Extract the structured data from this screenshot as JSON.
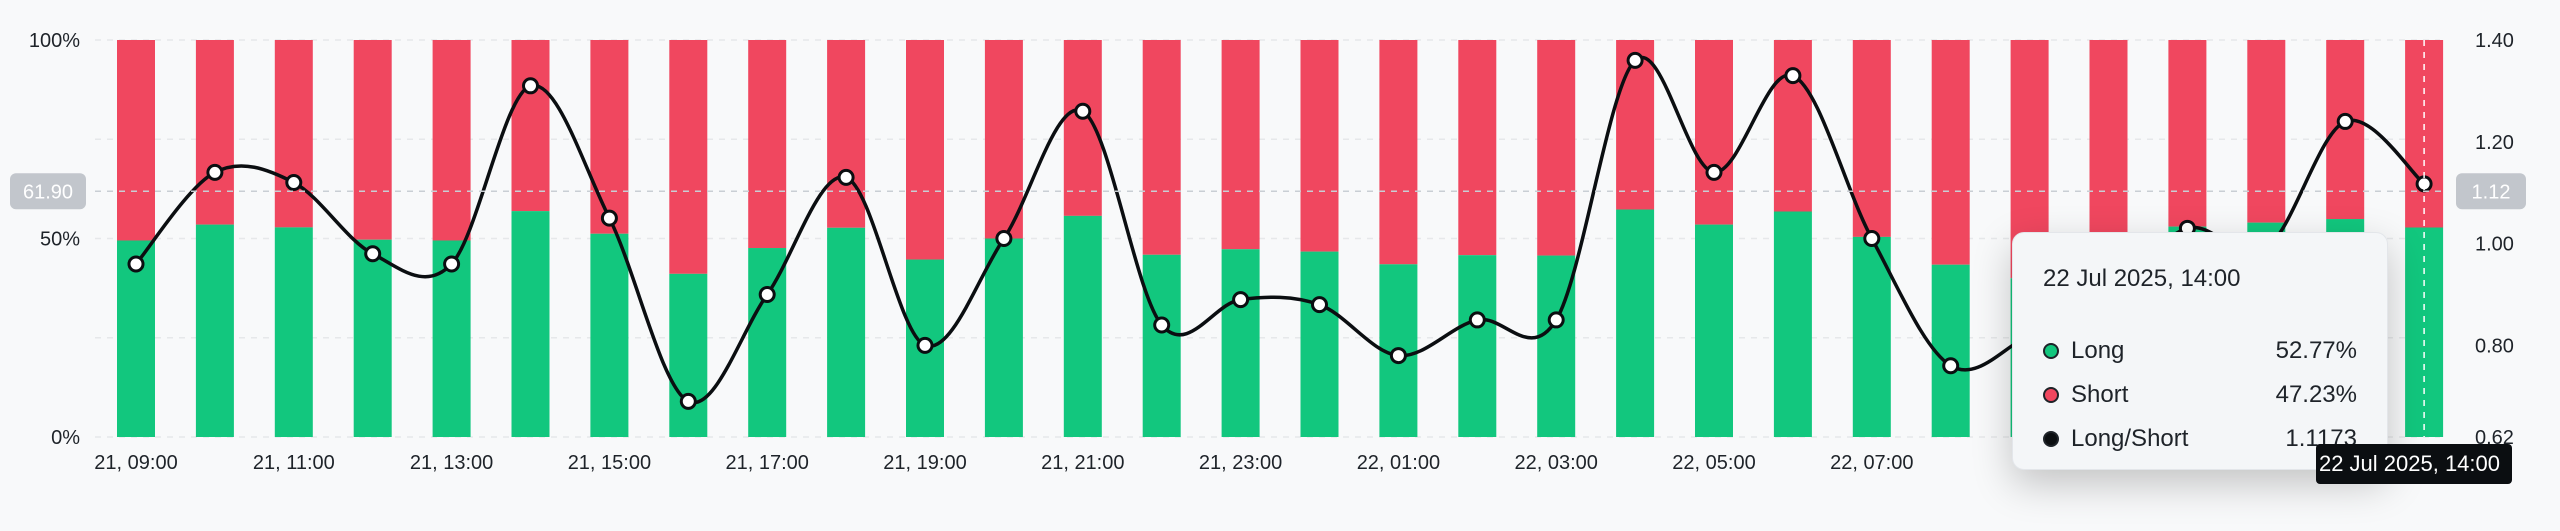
{
  "chart_data": {
    "type": "bar",
    "stacked": true,
    "categories": [
      "21, 09:00",
      "21, 10:00",
      "21, 11:00",
      "21, 12:00",
      "21, 13:00",
      "21, 14:00",
      "21, 15:00",
      "21, 16:00",
      "21, 17:00",
      "21, 18:00",
      "21, 19:00",
      "21, 20:00",
      "21, 21:00",
      "21, 22:00",
      "21, 23:00",
      "22, 00:00",
      "22, 01:00",
      "22, 02:00",
      "22, 03:00",
      "22, 04:00",
      "22, 05:00",
      "22, 06:00",
      "22, 07:00",
      "22, 08:00",
      "22, 09:00",
      "22, 10:00",
      "22, 11:00",
      "22, 12:00",
      "22, 13:00",
      "22, 14:00"
    ],
    "x_tick_labels": [
      "21, 09:00",
      "21, 11:00",
      "21, 13:00",
      "21, 15:00",
      "21, 17:00",
      "21, 19:00",
      "21, 21:00",
      "21, 23:00",
      "22, 01:00",
      "22, 03:00",
      "22, 05:00",
      "22, 07:00"
    ],
    "series": [
      {
        "name": "Long",
        "color": "#12c77e",
        "values": [
          49.5,
          53.5,
          52.8,
          49.7,
          49.5,
          56.9,
          51.2,
          41.1,
          47.6,
          52.7,
          44.7,
          50.0,
          55.7,
          45.9,
          47.3,
          46.7,
          43.5,
          45.8,
          45.7,
          57.3,
          53.5,
          56.8,
          50.4,
          43.4,
          40.0,
          41.0,
          53.0,
          54.0,
          54.9,
          52.77
        ]
      },
      {
        "name": "Short",
        "color": "#f0475f",
        "values": [
          50.5,
          46.5,
          47.2,
          50.3,
          50.5,
          43.1,
          48.8,
          58.9,
          52.4,
          47.3,
          55.3,
          50.0,
          44.3,
          54.1,
          52.7,
          53.3,
          56.5,
          54.2,
          54.3,
          42.7,
          46.5,
          43.2,
          49.6,
          56.6,
          60.0,
          59.0,
          47.0,
          46.0,
          45.1,
          47.23
        ]
      },
      {
        "name": "Long/Short",
        "color": "#0b0e11",
        "values": [
          0.96,
          1.14,
          1.12,
          0.98,
          0.96,
          1.31,
          1.05,
          0.69,
          0.9,
          1.13,
          0.8,
          1.01,
          1.26,
          0.84,
          0.89,
          0.88,
          0.78,
          0.85,
          0.85,
          1.36,
          1.14,
          1.33,
          1.01,
          0.76,
          0.82,
          0.9,
          1.03,
          0.99,
          1.24,
          1.1173
        ]
      }
    ],
    "left_axis": {
      "ticks": [
        "100%",
        "50%",
        "0%"
      ],
      "ylim": [
        0,
        100
      ]
    },
    "right_axis": {
      "ticks": [
        "1.40",
        "1.20",
        "1.00",
        "0.80",
        "0.62"
      ],
      "ylim": [
        0.62,
        1.4
      ]
    },
    "crosshair": {
      "left_label": "61.90",
      "right_label": "1.12",
      "bottom_label": "22 Jul 2025, 14:00",
      "index": 29
    }
  },
  "tooltip": {
    "title": "22 Jul 2025, 14:00",
    "rows": [
      {
        "label": "Long",
        "value": "52.77%",
        "color": "#12c77e"
      },
      {
        "label": "Short",
        "value": "47.23%",
        "color": "#f0475f"
      },
      {
        "label": "Long/Short",
        "value": "1.1173",
        "color": "#0b0e11"
      }
    ]
  }
}
